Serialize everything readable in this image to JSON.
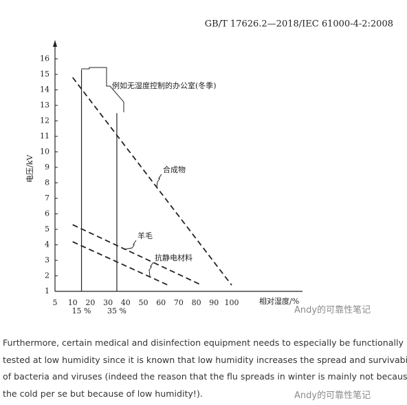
{
  "header": "GB/T 17626.2—2018/IEC 61000-4-2:2008",
  "chart_data": {
    "type": "line",
    "xlabel": "相对湿度/%",
    "ylabel": "电压/kV",
    "annotation": "例如无湿度控制的办公室(冬季)",
    "xticks": [
      5,
      10,
      20,
      30,
      40,
      50,
      60,
      70,
      80,
      90,
      100
    ],
    "ylim": [
      1,
      17
    ],
    "yticks": [
      1,
      2,
      3,
      4,
      5,
      6,
      7,
      8,
      9,
      10,
      11,
      12,
      13,
      14,
      15,
      16
    ],
    "series": [
      {
        "name": "合成物",
        "color": "#222222",
        "x": [
          10,
          100
        ],
        "values": [
          14.8,
          1.4
        ]
      },
      {
        "name": "羊毛",
        "color": "#222222",
        "x": [
          10,
          83
        ],
        "values": [
          5.3,
          1.4
        ]
      },
      {
        "name": "抗静电材料",
        "color": "#222222",
        "x": [
          10,
          64
        ],
        "values": [
          4.2,
          1.4
        ]
      }
    ],
    "reference_lines": [
      {
        "x": 15,
        "top": 15.3,
        "label": "15 %"
      },
      {
        "x": 35,
        "top": 12.5,
        "label": "35 %"
      }
    ]
  },
  "paragraph": [
    "Furthermore, certain medical and disinfection equipment needs to especially be functionally",
    "tested at low humidity since it is known that low humidity increases the spread and survivability",
    "of bacteria and viruses (indeed the reason that the flu spreads in winter is mainly not because of",
    "the cold per se but because of low humidity!)."
  ],
  "watermark": "Andy的可靠性笔记"
}
